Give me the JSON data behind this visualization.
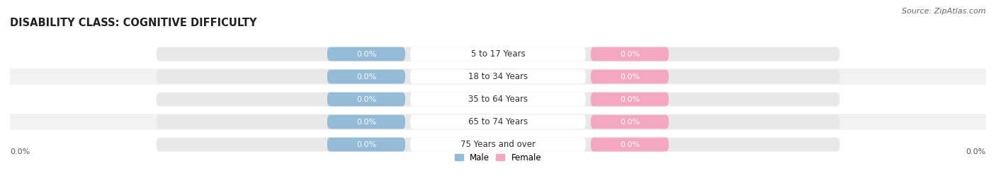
{
  "title": "DISABILITY CLASS: COGNITIVE DIFFICULTY",
  "source": "Source: ZipAtlas.com",
  "categories": [
    "5 to 17 Years",
    "18 to 34 Years",
    "35 to 64 Years",
    "65 to 74 Years",
    "75 Years and over"
  ],
  "male_values": [
    0.0,
    0.0,
    0.0,
    0.0,
    0.0
  ],
  "female_values": [
    0.0,
    0.0,
    0.0,
    0.0,
    0.0
  ],
  "male_color": "#92bcd8",
  "female_color": "#f4a8bf",
  "bar_bg_color": "#e8e8e8",
  "row_bg_color": "#f2f2f2",
  "background_color": "#ffffff",
  "title_fontsize": 10.5,
  "label_fontsize": 8.0,
  "cat_fontsize": 8.5,
  "tick_fontsize": 8.0,
  "source_fontsize": 8.0,
  "legend_fontsize": 8.5,
  "axis_label_left": "0.0%",
  "axis_label_right": "0.0%",
  "legend_male": "Male",
  "legend_female": "Female"
}
